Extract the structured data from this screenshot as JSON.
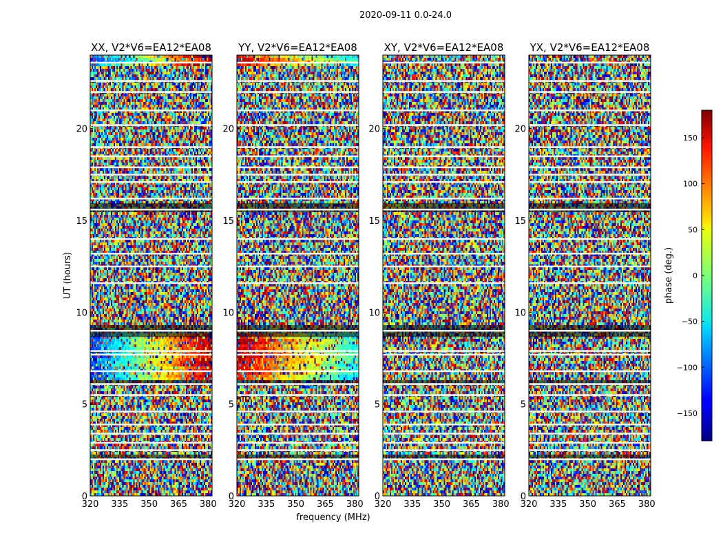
{
  "chart_data": {
    "type": "heatmap",
    "suptitle": "2020-09-11 0.0-24.0",
    "xlabel": "frequency (MHz)",
    "ylabel": "UT (hours)",
    "x_range": [
      320,
      382
    ],
    "y_range": [
      0,
      24
    ],
    "xticks": [
      320,
      335,
      350,
      365,
      380
    ],
    "yticks": [
      0,
      5,
      10,
      15,
      20
    ],
    "panels": [
      {
        "name": "XX",
        "title": "XX, V2*V6=EA12*EA08"
      },
      {
        "name": "YY",
        "title": "YY, V2*V6=EA12*EA08"
      },
      {
        "name": "XY",
        "title": "XY, V2*V6=EA12*EA08"
      },
      {
        "name": "YX",
        "title": "YX, V2*V6=EA12*EA08"
      }
    ],
    "colorbar": {
      "label": "phase (deg.)",
      "range": [
        -180,
        180
      ],
      "ticks": [
        150,
        100,
        50,
        0,
        -50,
        -100,
        -150
      ],
      "tick_labels": [
        "150",
        "100",
        "50",
        "0",
        "−50",
        "−100",
        "−150"
      ],
      "colormap": "jet"
    },
    "gap_rows_hours": [
      23.6,
      22.6,
      22.0,
      21.0,
      20.2,
      19.0,
      18.5,
      17.9,
      17.5,
      17.1,
      16.2,
      15.6,
      14.0,
      13.2,
      12.5,
      11.6,
      9.0,
      7.9,
      7.7,
      6.8,
      6.1,
      5.5,
      4.6,
      3.9,
      3.4,
      2.9,
      2.5,
      2.0
    ],
    "flagged_bands_hours": [
      [
        8.65,
        9.3
      ],
      [
        6.05,
        6.3
      ],
      [
        15.45,
        15.95
      ],
      [
        2.05,
        2.25
      ]
    ],
    "coherent_band_hours": [
      6.3,
      8.8
    ],
    "coherent_band_hours_top": [
      23.45,
      24.0
    ]
  }
}
